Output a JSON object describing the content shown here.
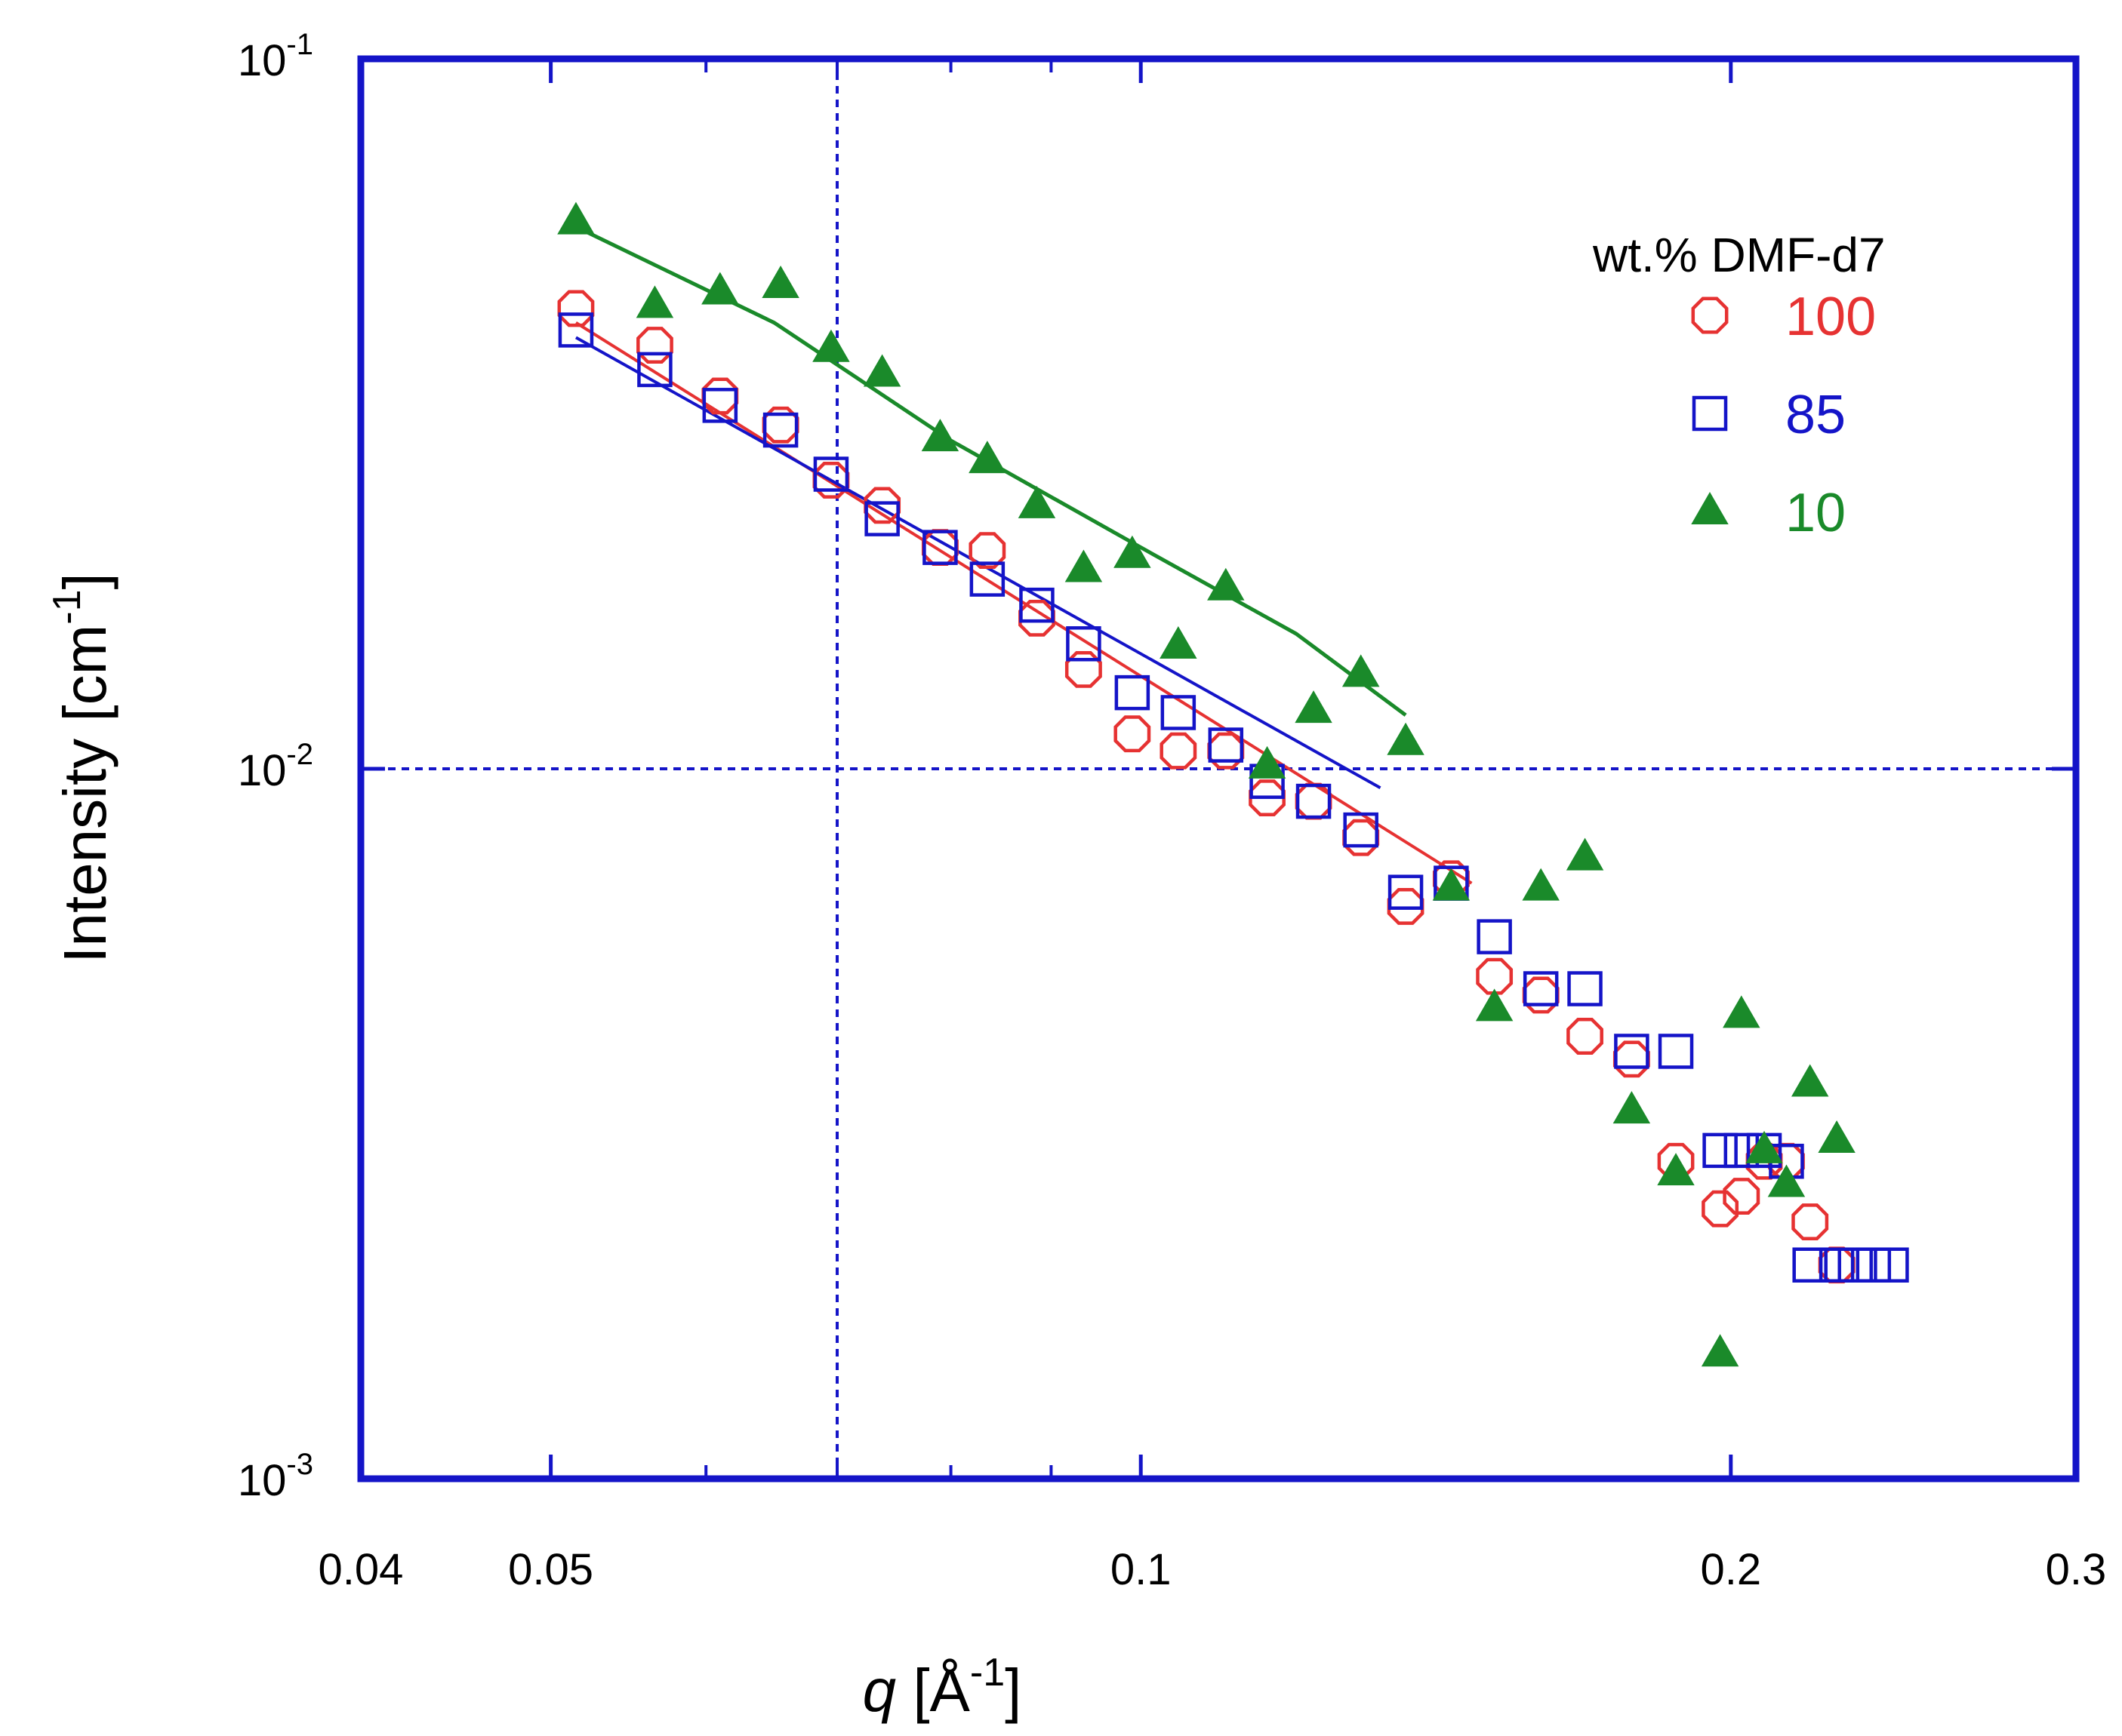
{
  "chart_data": {
    "type": "scatter",
    "xscale": "log",
    "yscale": "log",
    "xlim": [
      0.04,
      0.3
    ],
    "ylim": [
      0.001,
      0.1
    ],
    "x_ticks": [
      {
        "value": 0.04,
        "label": "0.04"
      },
      {
        "value": 0.05,
        "label": "0.05"
      },
      {
        "value": 0.1,
        "label": "0.1"
      },
      {
        "value": 0.2,
        "label": "0.2"
      },
      {
        "value": 0.3,
        "label": "0.3"
      }
    ],
    "y_ticks": [
      {
        "value": 0.1,
        "base": "10",
        "exp": "-1"
      },
      {
        "value": 0.01,
        "base": "10",
        "exp": "-2"
      },
      {
        "value": 0.001,
        "base": "10",
        "exp": "-3"
      }
    ],
    "xlabel": {
      "symbol": "q",
      "text": " [Å",
      "exp": "-1",
      "close": "]"
    },
    "ylabel": {
      "text": "Intensity [cm",
      "exp": "-1",
      "close": "]"
    },
    "grid": {
      "x": [
        0.07
      ],
      "y": [
        0.01
      ]
    },
    "axis_color": "#1414c8",
    "legend": {
      "title": "wt.% DMF-d7",
      "position": "top-right"
    },
    "series": [
      {
        "name": "100",
        "marker": "hollow-circle",
        "color": "#e63232",
        "points": [
          {
            "q": 0.0515,
            "i": 0.0445
          },
          {
            "q": 0.0565,
            "i": 0.0395
          },
          {
            "q": 0.061,
            "i": 0.0335
          },
          {
            "q": 0.0655,
            "i": 0.0305
          },
          {
            "q": 0.0695,
            "i": 0.0255
          },
          {
            "q": 0.0738,
            "i": 0.0235
          },
          {
            "q": 0.079,
            "i": 0.0205
          },
          {
            "q": 0.0835,
            "i": 0.0203
          },
          {
            "q": 0.0885,
            "i": 0.0163
          },
          {
            "q": 0.0935,
            "i": 0.0138
          },
          {
            "q": 0.099,
            "i": 0.0112
          },
          {
            "q": 0.1045,
            "i": 0.0106
          },
          {
            "q": 0.1105,
            "i": 0.0106
          },
          {
            "q": 0.116,
            "i": 0.0091
          },
          {
            "q": 0.1225,
            "i": 0.009
          },
          {
            "q": 0.1295,
            "i": 0.008
          },
          {
            "q": 0.1365,
            "i": 0.0064
          },
          {
            "q": 0.144,
            "i": 0.007
          },
          {
            "q": 0.1515,
            "i": 0.0051
          },
          {
            "q": 0.16,
            "i": 0.0048
          },
          {
            "q": 0.1685,
            "i": 0.0042
          },
          {
            "q": 0.178,
            "i": 0.0039
          },
          {
            "q": 0.1875,
            "i": 0.0028
          },
          {
            "q": 0.1975,
            "i": 0.0024
          },
          {
            "q": 0.2025,
            "i": 0.0025
          },
          {
            "q": 0.208,
            "i": 0.0028
          },
          {
            "q": 0.2135,
            "i": 0.0028
          },
          {
            "q": 0.2195,
            "i": 0.0023
          },
          {
            "q": 0.2265,
            "i": 0.002
          }
        ],
        "fit": {
          "q_start": 0.0515,
          "i_start": 0.0425,
          "q_end": 0.1475,
          "i_end": 0.0069
        }
      },
      {
        "name": "85",
        "marker": "hollow-square",
        "color": "#1414c8",
        "points": [
          {
            "q": 0.0515,
            "i": 0.0415
          },
          {
            "q": 0.0565,
            "i": 0.0365
          },
          {
            "q": 0.061,
            "i": 0.0325
          },
          {
            "q": 0.0655,
            "i": 0.03
          },
          {
            "q": 0.0695,
            "i": 0.026
          },
          {
            "q": 0.0738,
            "i": 0.0225
          },
          {
            "q": 0.079,
            "i": 0.0205
          },
          {
            "q": 0.0835,
            "i": 0.0185
          },
          {
            "q": 0.0885,
            "i": 0.017
          },
          {
            "q": 0.0935,
            "i": 0.015
          },
          {
            "q": 0.099,
            "i": 0.0128
          },
          {
            "q": 0.1045,
            "i": 0.012
          },
          {
            "q": 0.1105,
            "i": 0.0108
          },
          {
            "q": 0.116,
            "i": 0.0096
          },
          {
            "q": 0.1225,
            "i": 0.009
          },
          {
            "q": 0.1295,
            "i": 0.0082
          },
          {
            "q": 0.1365,
            "i": 0.0067
          },
          {
            "q": 0.144,
            "i": 0.0069
          },
          {
            "q": 0.1515,
            "i": 0.0058
          },
          {
            "q": 0.16,
            "i": 0.0049
          },
          {
            "q": 0.1685,
            "i": 0.0049
          },
          {
            "q": 0.178,
            "i": 0.004
          },
          {
            "q": 0.1875,
            "i": 0.004
          },
          {
            "q": 0.1975,
            "i": 0.0029
          },
          {
            "q": 0.2025,
            "i": 0.0029
          },
          {
            "q": 0.208,
            "i": 0.0029
          },
          {
            "q": 0.2135,
            "i": 0.0028
          },
          {
            "q": 0.2195,
            "i": 0.002
          },
          {
            "q": 0.2265,
            "i": 0.002
          },
          {
            "q": 0.2315,
            "i": 0.002
          },
          {
            "q": 0.2365,
            "i": 0.002
          },
          {
            "q": 0.2415,
            "i": 0.002
          }
        ],
        "fit": {
          "q_start": 0.0515,
          "i_start": 0.0405,
          "q_end": 0.1325,
          "i_end": 0.0094
        }
      },
      {
        "name": "10",
        "marker": "filled-triangle",
        "color": "#1a8a2a",
        "points": [
          {
            "q": 0.0515,
            "i": 0.059
          },
          {
            "q": 0.0565,
            "i": 0.045
          },
          {
            "q": 0.061,
            "i": 0.047
          },
          {
            "q": 0.0655,
            "i": 0.048
          },
          {
            "q": 0.0695,
            "i": 0.039
          },
          {
            "q": 0.0738,
            "i": 0.036
          },
          {
            "q": 0.079,
            "i": 0.0292
          },
          {
            "q": 0.0835,
            "i": 0.0272
          },
          {
            "q": 0.0885,
            "i": 0.0235
          },
          {
            "q": 0.0935,
            "i": 0.0191
          },
          {
            "q": 0.099,
            "i": 0.02
          },
          {
            "q": 0.1045,
            "i": 0.0149
          },
          {
            "q": 0.1105,
            "i": 0.018
          },
          {
            "q": 0.116,
            "i": 0.0101
          },
          {
            "q": 0.1225,
            "i": 0.0121
          },
          {
            "q": 0.1295,
            "i": 0.0136
          },
          {
            "q": 0.1365,
            "i": 0.0109
          },
          {
            "q": 0.144,
            "i": 0.0068
          },
          {
            "q": 0.1515,
            "i": 0.0046
          },
          {
            "q": 0.16,
            "i": 0.0068
          },
          {
            "q": 0.1685,
            "i": 0.0075
          },
          {
            "q": 0.178,
            "i": 0.0033
          },
          {
            "q": 0.1875,
            "i": 0.0027
          },
          {
            "q": 0.1975,
            "i": 0.0015
          },
          {
            "q": 0.2025,
            "i": 0.0045
          },
          {
            "q": 0.208,
            "i": 0.0029
          },
          {
            "q": 0.2135,
            "i": 0.0026
          },
          {
            "q": 0.2195,
            "i": 0.0036
          },
          {
            "q": 0.2265,
            "i": 0.003
          }
        ],
        "fit_points": [
          {
            "q": 0.0515,
            "i": 0.058
          },
          {
            "q": 0.065,
            "i": 0.0425
          },
          {
            "q": 0.08,
            "i": 0.029
          },
          {
            "q": 0.1,
            "i": 0.0205
          },
          {
            "q": 0.12,
            "i": 0.0155
          },
          {
            "q": 0.1365,
            "i": 0.0119
          }
        ]
      }
    ]
  }
}
